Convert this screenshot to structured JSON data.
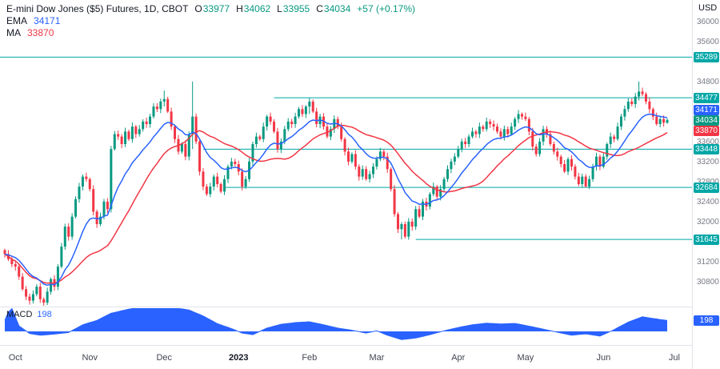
{
  "window": {
    "currency": "USD"
  },
  "legend": {
    "title": "E-mini Dow Jones ($5) Futures, 1D, CBOT",
    "o_label": "O",
    "o": "33977",
    "h_label": "H",
    "h": "34062",
    "l_label": "L",
    "l": "33955",
    "c_label": "C",
    "c": "34034",
    "change": "+57 (+0.17%)",
    "ema_label": "EMA",
    "ema_value": "34171",
    "ma_label": "MA",
    "ma_value": "33870"
  },
  "macd_legend": {
    "label": "MACD",
    "value": "198"
  },
  "colors": {
    "up": "#089981",
    "down": "#f23645",
    "ema": "#2962ff",
    "ma": "#f23645",
    "level": "#00a6a6",
    "macd": "#2962ff",
    "last_badge": "#089981",
    "axis_text": "#787b86"
  },
  "price_axis": {
    "plain_labels": [
      36000,
      35600,
      34800,
      33600,
      33200,
      32800,
      32400,
      32000,
      31200,
      30800
    ],
    "badges": [
      {
        "price": 35289,
        "type": "level"
      },
      {
        "price": 34477,
        "type": "level"
      },
      {
        "price": 34171,
        "type": "ema"
      },
      {
        "price": 34034,
        "type": "last"
      },
      {
        "price": 33870,
        "type": "ma"
      },
      {
        "price": 33448,
        "type": "level"
      },
      {
        "price": 32684,
        "type": "level"
      },
      {
        "price": 31645,
        "type": "level"
      }
    ]
  },
  "time_axis": {
    "labels": [
      {
        "text": "Oct",
        "i": 3
      },
      {
        "text": "Nov",
        "i": 24
      },
      {
        "text": "Dec",
        "i": 45
      },
      {
        "text": "2023",
        "i": 66,
        "bold": true
      },
      {
        "text": "Feb",
        "i": 86
      },
      {
        "text": "Mar",
        "i": 105
      },
      {
        "text": "Apr",
        "i": 128
      },
      {
        "text": "May",
        "i": 147
      },
      {
        "text": "Jun",
        "i": 169
      },
      {
        "text": "Jul",
        "i": 189
      }
    ]
  },
  "chart_data": {
    "type": "candlestick",
    "title": "E-mini Dow Jones ($5) Futures, 1D, CBOT",
    "timeframe": "1D",
    "x_range": [
      "Oct 2022",
      "Jul 2023"
    ],
    "ylim": [
      30300,
      36430
    ],
    "last_ohlc": {
      "open": 33977,
      "high": 34062,
      "low": 33955,
      "close": 34034,
      "change": "+57 (+0.17%)"
    },
    "indicators": {
      "ema_period": 13,
      "ema_current": 34171,
      "ma_period": 26,
      "ma_current": 33870,
      "macd_current": 198
    },
    "levels": [
      {
        "price": 35289,
        "start_i": 0
      },
      {
        "price": 34477,
        "start_i": 76
      },
      {
        "price": 33448,
        "start_i": 56
      },
      {
        "price": 32684,
        "start_i": 62
      },
      {
        "price": 31645,
        "start_i": 116
      }
    ],
    "closes": [
      31350,
      31250,
      31150,
      31100,
      30900,
      30650,
      30500,
      30420,
      30550,
      30700,
      30450,
      30380,
      30600,
      30850,
      30700,
      31100,
      31500,
      31900,
      31700,
      32100,
      32450,
      32700,
      32900,
      32850,
      32650,
      32200,
      31950,
      32100,
      32400,
      32250,
      33450,
      33750,
      33700,
      33550,
      33800,
      33650,
      33900,
      33750,
      33850,
      34000,
      33950,
      34100,
      34300,
      34250,
      34400,
      34450,
      34200,
      33900,
      33650,
      33400,
      33550,
      33300,
      33750,
      34100,
      33600,
      33000,
      32700,
      32550,
      32700,
      32900,
      32750,
      32600,
      32850,
      33100,
      33200,
      33150,
      33000,
      32700,
      32850,
      33200,
      33550,
      33700,
      33650,
      33900,
      34100,
      34000,
      33800,
      33450,
      33600,
      33850,
      34000,
      33950,
      34100,
      34250,
      34150,
      34300,
      34400,
      34200,
      33950,
      34100,
      33900,
      33700,
      33850,
      34050,
      33900,
      33650,
      33400,
      33200,
      33350,
      33100,
      32900,
      33050,
      32850,
      32950,
      33100,
      33250,
      33400,
      33300,
      33050,
      32650,
      32150,
      31850,
      31950,
      31700,
      32000,
      31900,
      32250,
      32100,
      32400,
      32300,
      32550,
      32700,
      32500,
      32650,
      32850,
      33050,
      33200,
      33300,
      33450,
      33600,
      33550,
      33700,
      33800,
      33750,
      33900,
      33850,
      34000,
      33950,
      33900,
      33800,
      33700,
      33850,
      33750,
      33900,
      34050,
      34150,
      34100,
      34050,
      33800,
      33500,
      33350,
      33600,
      33850,
      33750,
      33550,
      33400,
      33300,
      33150,
      33000,
      33250,
      33100,
      32900,
      32750,
      32900,
      32700,
      32850,
      33100,
      33300,
      33100,
      33300,
      33550,
      33700,
      33650,
      33900,
      34100,
      34250,
      34400,
      34350,
      34500,
      34600,
      34550,
      34400,
      34250,
      34100,
      33950,
      34050,
      33977,
      34034
    ],
    "special_candles": {
      "45": [
        34400,
        34620,
        34300,
        34450
      ],
      "53": [
        33750,
        34800,
        33450,
        34100
      ],
      "86": [
        34300,
        34477,
        34150,
        34400
      ],
      "112": [
        31850,
        31990,
        31645,
        31950
      ],
      "164": [
        32900,
        32950,
        32684,
        32700
      ],
      "179": [
        34500,
        34800,
        34420,
        34600
      ],
      "187": [
        33977,
        34062,
        33955,
        34034
      ]
    },
    "macd_anchors": [
      [
        0,
        200
      ],
      [
        1,
        350
      ],
      [
        2,
        420
      ],
      [
        4,
        100
      ],
      [
        7,
        -40
      ],
      [
        10,
        -70
      ],
      [
        14,
        -50
      ],
      [
        18,
        -20
      ],
      [
        22,
        120
      ],
      [
        26,
        200
      ],
      [
        30,
        330
      ],
      [
        36,
        420
      ],
      [
        42,
        450
      ],
      [
        48,
        430
      ],
      [
        52,
        390
      ],
      [
        56,
        280
      ],
      [
        60,
        140
      ],
      [
        64,
        50
      ],
      [
        67,
        -30
      ],
      [
        70,
        -60
      ],
      [
        74,
        60
      ],
      [
        78,
        130
      ],
      [
        82,
        160
      ],
      [
        86,
        175
      ],
      [
        90,
        120
      ],
      [
        94,
        60
      ],
      [
        98,
        20
      ],
      [
        102,
        -30
      ],
      [
        105,
        10
      ],
      [
        108,
        -70
      ],
      [
        112,
        -150
      ],
      [
        116,
        -120
      ],
      [
        120,
        -60
      ],
      [
        124,
        10
      ],
      [
        128,
        70
      ],
      [
        132,
        120
      ],
      [
        136,
        150
      ],
      [
        140,
        135
      ],
      [
        144,
        145
      ],
      [
        148,
        95
      ],
      [
        152,
        40
      ],
      [
        156,
        -15
      ],
      [
        160,
        -70
      ],
      [
        164,
        -45
      ],
      [
        168,
        -85
      ],
      [
        172,
        30
      ],
      [
        176,
        170
      ],
      [
        180,
        265
      ],
      [
        183,
        235
      ],
      [
        187,
        198
      ]
    ]
  }
}
